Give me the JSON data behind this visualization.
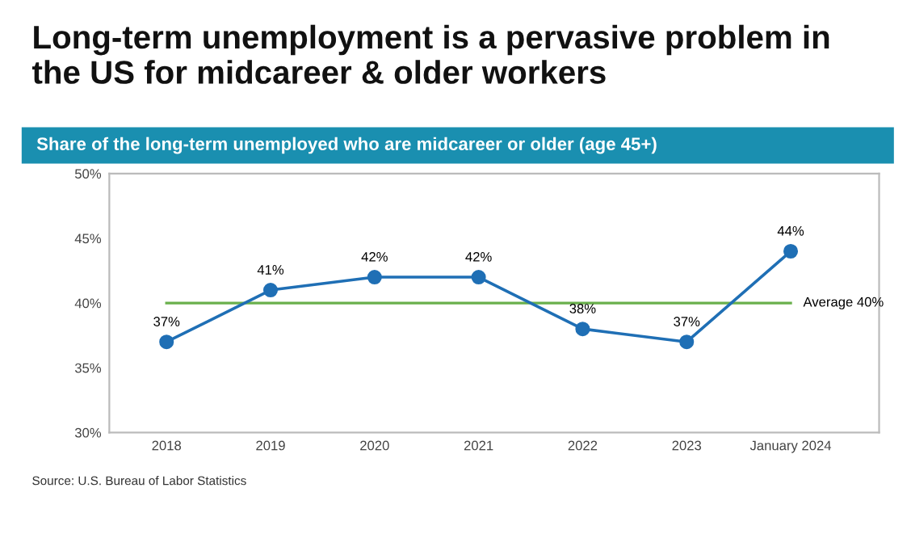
{
  "chart_data": {
    "type": "line",
    "title": "Long-term unemployment is a pervasive problem in\nthe US for midcareer & older workers",
    "subtitle": "Share of the long-term unemployed who are midcareer or older (age 45+)",
    "categories": [
      "2018",
      "2019",
      "2020",
      "2021",
      "2022",
      "2023",
      "January 2024"
    ],
    "series": [
      {
        "color": "#1f6fb5",
        "values": [
          37,
          41,
          42,
          42,
          38,
          37,
          44
        ],
        "value_labels": [
          "37%",
          "41%",
          "42%",
          "42%",
          "38%",
          "37%",
          "44%"
        ]
      }
    ],
    "ylim": [
      30,
      50
    ],
    "yticks": [
      {
        "value": 30,
        "label": "30%"
      },
      {
        "value": 35,
        "label": "35%"
      },
      {
        "value": 40,
        "label": "40%"
      },
      {
        "value": 45,
        "label": "45%"
      },
      {
        "value": 50,
        "label": "50%"
      }
    ],
    "ref_lines": [
      {
        "axis": "y",
        "value": 40,
        "label": "Average 40%",
        "color": "#6ab04c",
        "line_style": "solid"
      }
    ],
    "marker": "circle",
    "line_style": "solid",
    "grid": false,
    "annotations": [
      "Source: U.S. Bureau of Labor Statistics"
    ]
  }
}
